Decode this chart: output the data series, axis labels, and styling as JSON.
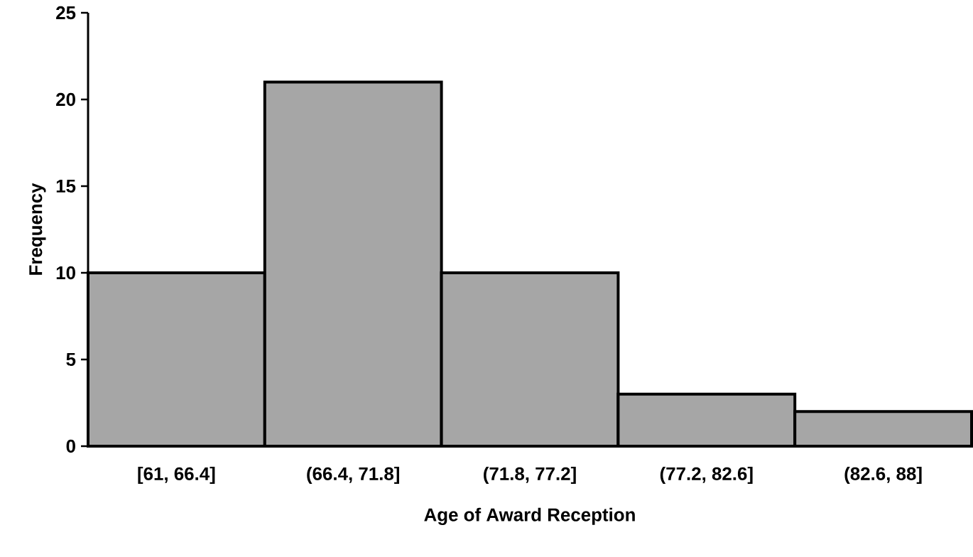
{
  "chart_data": {
    "type": "bar",
    "xlabel": "Age of Award Reception",
    "ylabel": "Frequency",
    "categories": [
      "[61, 66.4]",
      "(66.4, 71.8]",
      "(71.8, 77.2]",
      "(77.2, 82.6]",
      "(82.6, 88]"
    ],
    "values": [
      10,
      21,
      10,
      3,
      2
    ],
    "color": "#a6a6a6",
    "ylim": [
      0,
      25
    ],
    "yticks": [
      0,
      5,
      10,
      15,
      20,
      25
    ]
  }
}
